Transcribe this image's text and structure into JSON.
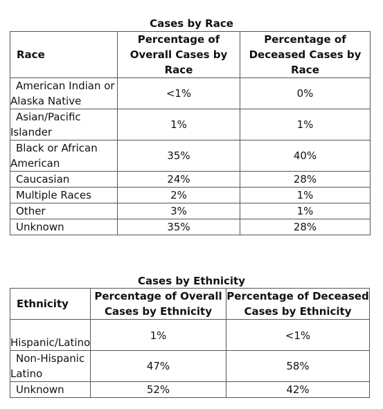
{
  "race_table": {
    "caption": "Cases by Race",
    "headers": [
      "Race",
      "Percentage of Overall Cases by Race",
      "Percentage of Deceased Cases by Race"
    ],
    "rows": [
      {
        "label": "American Indian or Alaska Native",
        "overall": "<1%",
        "deceased": "0%"
      },
      {
        "label": "Asian/Pacific Islander",
        "overall": "1%",
        "deceased": "1%"
      },
      {
        "label": "Black or African American",
        "overall": "35%",
        "deceased": "40%"
      },
      {
        "label": "Caucasian",
        "overall": "24%",
        "deceased": "28%"
      },
      {
        "label": "Multiple Races",
        "overall": "2%",
        "deceased": "1%"
      },
      {
        "label": "Other",
        "overall": "3%",
        "deceased": "1%"
      },
      {
        "label": "Unknown",
        "overall": "35%",
        "deceased": "28%"
      }
    ]
  },
  "ethnicity_table": {
    "caption": "Cases by Ethnicity",
    "headers": [
      "Ethnicity",
      "Percentage of Overall Cases by Ethnicity",
      "Percentage of Deceased Cases by Ethnicity"
    ],
    "rows": [
      {
        "label": "Hispanic/Latino",
        "overall": "1%",
        "deceased": "<1%"
      },
      {
        "label": "Non-Hispanic Latino",
        "overall": "47%",
        "deceased": "58%"
      },
      {
        "label": "Unknown",
        "overall": "52%",
        "deceased": "42%"
      }
    ]
  }
}
